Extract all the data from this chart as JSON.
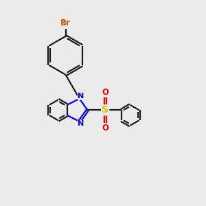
{
  "bg_color": "#ebebeb",
  "bond_color": "#1a1a1a",
  "n_color": "#0000ff",
  "br_color": "#cc5500",
  "s_color": "#cccc00",
  "o_color": "#ff0000",
  "line_width": 1.6,
  "dbo": 0.055,
  "xlim": [
    0,
    10
  ],
  "ylim": [
    0,
    10
  ]
}
